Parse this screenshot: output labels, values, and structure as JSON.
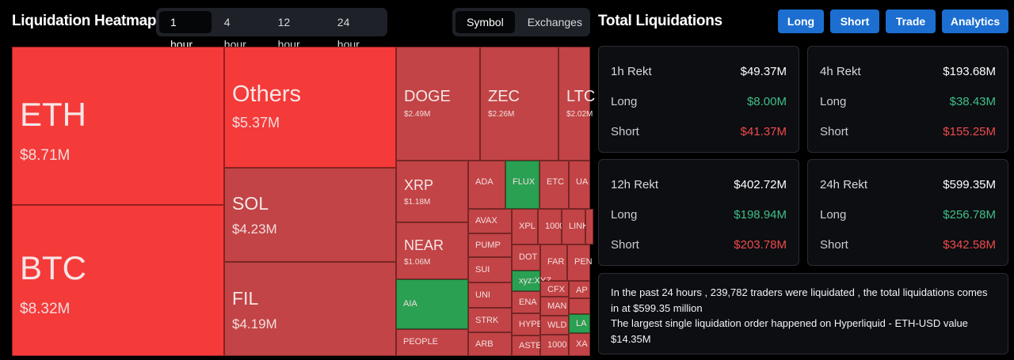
{
  "heatmap": {
    "title": "Liquidation Heatmap",
    "time_tabs": [
      {
        "label": "1 hour",
        "active": true
      },
      {
        "label": "4 hour",
        "active": false
      },
      {
        "label": "12 hour",
        "active": false
      },
      {
        "label": "24 hour",
        "active": false
      }
    ],
    "view_tabs": [
      {
        "label": "Symbol",
        "active": true
      },
      {
        "label": "Exchanges",
        "active": false
      }
    ],
    "colors": {
      "bright_red": "#f53a3a",
      "red": "#c24446",
      "green": "#29a052"
    },
    "tiles": [
      {
        "symbol": "ETH",
        "value": "$8.71M",
        "color": "bright_red"
      },
      {
        "symbol": "BTC",
        "value": "$8.32M",
        "color": "bright_red"
      },
      {
        "symbol": "Others",
        "value": "$5.37M",
        "color": "bright_red"
      },
      {
        "symbol": "SOL",
        "value": "$4.23M",
        "color": "red"
      },
      {
        "symbol": "FIL",
        "value": "$4.19M",
        "color": "red"
      },
      {
        "symbol": "DOGE",
        "value": "$2.49M",
        "color": "red"
      },
      {
        "symbol": "ZEC",
        "value": "$2.26M",
        "color": "red"
      },
      {
        "symbol": "LTC",
        "value": "$2.02M",
        "color": "red"
      },
      {
        "symbol": "XRP",
        "value": "$1.18M",
        "color": "red"
      },
      {
        "symbol": "NEAR",
        "value": "$1.06M",
        "color": "red"
      },
      {
        "symbol": "AIA",
        "value": "",
        "color": "green"
      },
      {
        "symbol": "PEOPLE",
        "value": "",
        "color": "red"
      },
      {
        "symbol": "ADA",
        "value": "",
        "color": "red"
      },
      {
        "symbol": "FLUX",
        "value": "",
        "color": "green"
      },
      {
        "symbol": "ETC",
        "value": "",
        "color": "red"
      },
      {
        "symbol": "UA",
        "value": "",
        "color": "red"
      },
      {
        "symbol": "AVAX",
        "value": "",
        "color": "red"
      },
      {
        "symbol": "PUMP",
        "value": "",
        "color": "red"
      },
      {
        "symbol": "SUI",
        "value": "",
        "color": "red"
      },
      {
        "symbol": "UNI",
        "value": "",
        "color": "red"
      },
      {
        "symbol": "STRK",
        "value": "",
        "color": "red"
      },
      {
        "symbol": "ARB",
        "value": "",
        "color": "red"
      },
      {
        "symbol": "XPL",
        "value": "",
        "color": "red"
      },
      {
        "symbol": "1000",
        "value": "",
        "color": "red"
      },
      {
        "symbol": "LINK",
        "value": "",
        "color": "red"
      },
      {
        "symbol": "",
        "value": "",
        "color": "red"
      },
      {
        "symbol": "DOT",
        "value": "",
        "color": "red"
      },
      {
        "symbol": "FAR",
        "value": "",
        "color": "red"
      },
      {
        "symbol": "PEN",
        "value": "",
        "color": "red"
      },
      {
        "symbol": "xyz:XYZ",
        "value": "",
        "color": "green"
      },
      {
        "symbol": "CFX",
        "value": "",
        "color": "red"
      },
      {
        "symbol": "AP",
        "value": "",
        "color": "red"
      },
      {
        "symbol": "ENA",
        "value": "",
        "color": "red"
      },
      {
        "symbol": "MAN",
        "value": "",
        "color": "red"
      },
      {
        "symbol": "",
        "value": "",
        "color": "red"
      },
      {
        "symbol": "HYPE",
        "value": "",
        "color": "red"
      },
      {
        "symbol": "WLD",
        "value": "",
        "color": "red"
      },
      {
        "symbol": "LA",
        "value": "",
        "color": "green"
      },
      {
        "symbol": "ASTER",
        "value": "",
        "color": "red"
      },
      {
        "symbol": "1000",
        "value": "",
        "color": "red"
      },
      {
        "symbol": "XA",
        "value": "",
        "color": "red"
      }
    ]
  },
  "total": {
    "title": "Total Liquidations",
    "buttons": [
      "Long",
      "Short",
      "Trade",
      "Analytics"
    ],
    "cards": [
      {
        "label": "1h Rekt",
        "total": "$49.37M",
        "long_label": "Long",
        "long": "$8.00M",
        "short_label": "Short",
        "short": "$41.37M"
      },
      {
        "label": "4h Rekt",
        "total": "$193.68M",
        "long_label": "Long",
        "long": "$38.43M",
        "short_label": "Short",
        "short": "$155.25M"
      },
      {
        "label": "12h Rekt",
        "total": "$402.72M",
        "long_label": "Long",
        "long": "$198.94M",
        "short_label": "Short",
        "short": "$203.78M"
      },
      {
        "label": "24h Rekt",
        "total": "$599.35M",
        "long_label": "Long",
        "long": "$256.78M",
        "short_label": "Short",
        "short": "$342.58M"
      }
    ],
    "summary": {
      "line1": "In the past 24 hours , 239,782 traders were liquidated , the total liquidations comes in at $599.35 million",
      "line2": "The largest single liquidation order happened on Hyperliquid - ETH-USD value $14.35M"
    }
  }
}
